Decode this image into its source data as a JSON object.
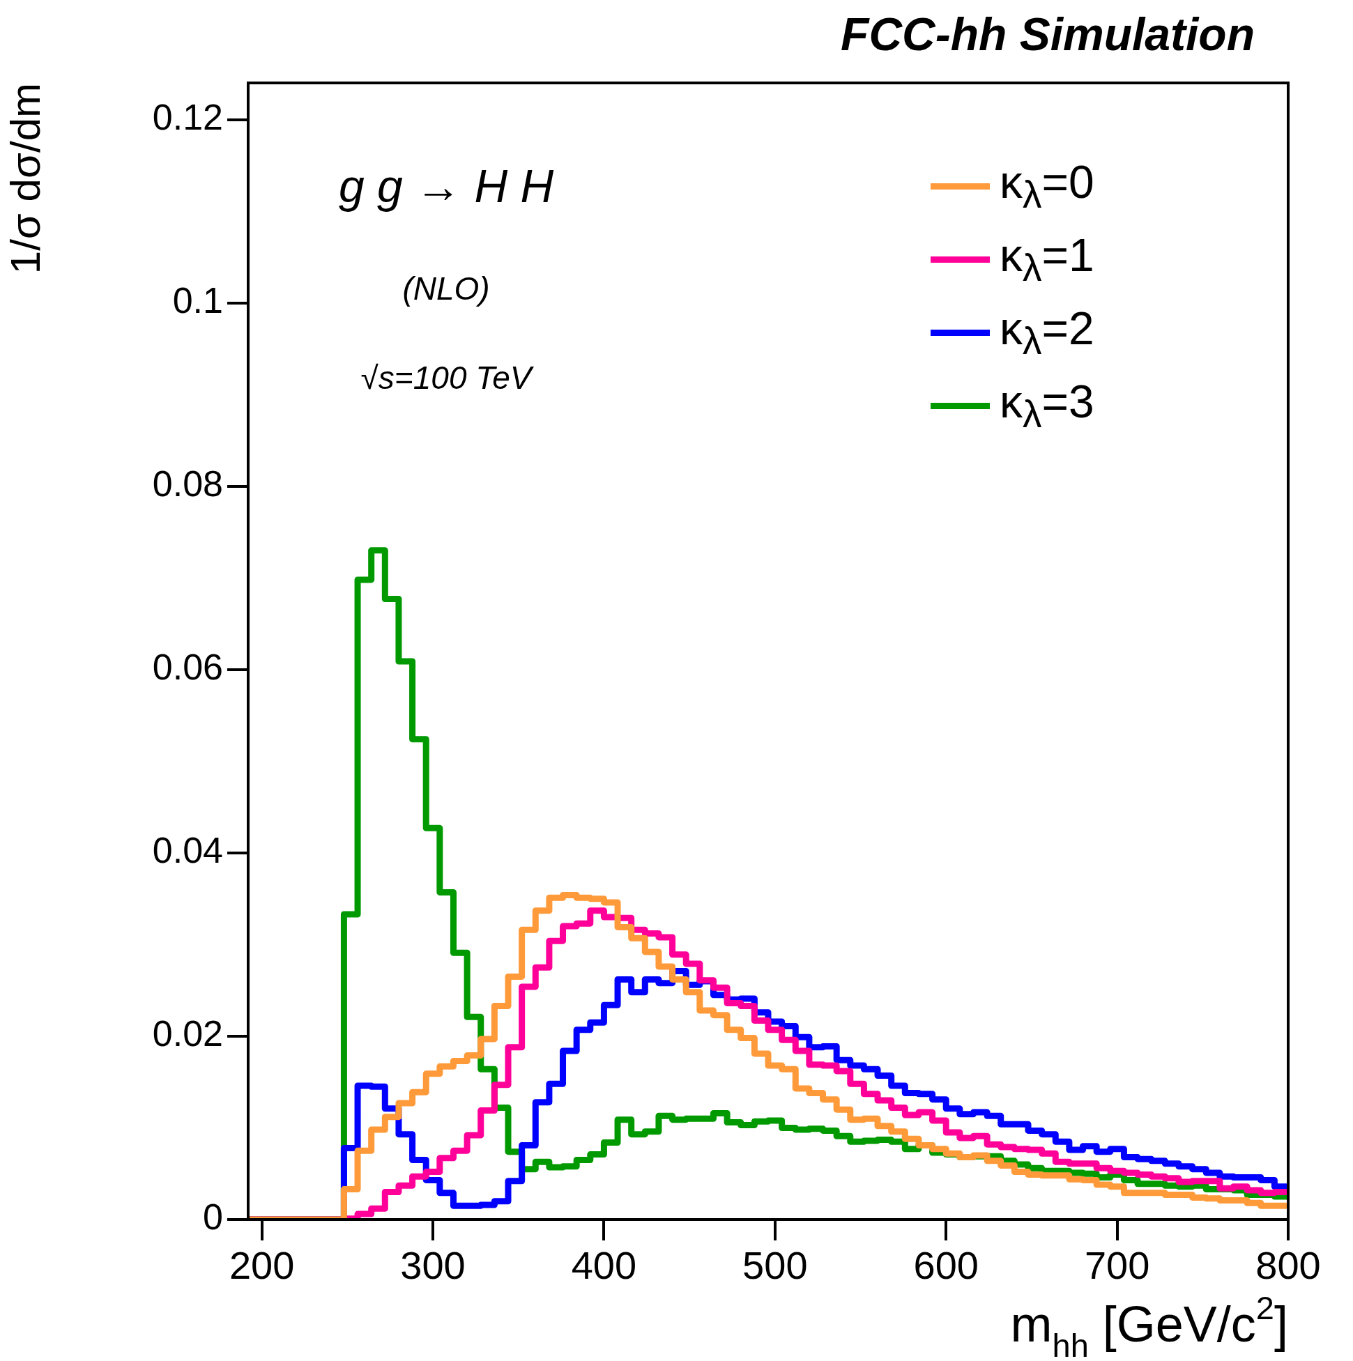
{
  "chart_data": {
    "type": "histogram",
    "title": "FCC-hh Simulation",
    "xlabel": "m$_{hh}$ [GeV/c$^{2}$]",
    "ylabel": "1/σ dσ/dm",
    "annotations": [
      "g g → H H",
      "(NLO)",
      "√s=100 TeV"
    ],
    "bins": [
      192,
      200,
      208,
      216,
      224,
      232,
      240,
      248,
      256,
      264,
      272,
      280,
      288,
      296,
      304,
      312,
      320,
      328,
      336,
      344,
      352,
      360,
      368,
      376,
      384,
      392,
      400,
      408,
      416,
      424,
      432,
      440,
      448,
      456,
      464,
      472,
      480,
      488,
      496,
      504,
      512,
      520,
      528,
      536,
      544,
      552,
      560,
      568,
      576,
      584,
      592,
      600,
      608,
      616,
      624,
      632,
      640,
      648,
      656,
      664,
      672,
      680,
      688,
      696,
      704,
      712,
      720,
      728,
      736,
      744,
      752,
      760,
      768,
      776,
      784,
      792,
      800
    ],
    "series": [
      {
        "name": "κ$_{λ}$=0",
        "color": "#fe9a3a",
        "values": [
          0,
          0,
          0,
          0,
          0,
          0,
          0,
          0.0033,
          0.0075,
          0.0098,
          0.0112,
          0.0127,
          0.0139,
          0.0159,
          0.0167,
          0.0173,
          0.0179,
          0.0197,
          0.0233,
          0.0265,
          0.0316,
          0.0337,
          0.0351,
          0.0354,
          0.0351,
          0.035,
          0.0346,
          0.0319,
          0.0307,
          0.0292,
          0.0276,
          0.0262,
          0.0248,
          0.0228,
          0.0223,
          0.0207,
          0.0198,
          0.0181,
          0.0168,
          0.0164,
          0.0143,
          0.0138,
          0.0131,
          0.012,
          0.0109,
          0.011,
          0.0102,
          0.0096,
          0.0088,
          0.0081,
          0.0077,
          0.0072,
          0.0068,
          0.007,
          0.0064,
          0.0059,
          0.0052,
          0.0049,
          0.0048,
          0.0048,
          0.0044,
          0.0043,
          0.0038,
          0.0036,
          0.0029,
          0.0029,
          0.0029,
          0.0027,
          0.0027,
          0.0024,
          0.0023,
          0.0021,
          0.0021,
          0.0018,
          0.0015,
          0.0015
        ]
      },
      {
        "name": "κ$_{λ}$=1",
        "color": "#ff0099",
        "values": [
          0,
          0,
          0,
          0,
          0,
          0,
          0,
          0.0001,
          0.0006,
          0.0012,
          0.003,
          0.0037,
          0.0047,
          0.0052,
          0.0067,
          0.0075,
          0.0092,
          0.0119,
          0.0147,
          0.0188,
          0.0254,
          0.0275,
          0.0304,
          0.032,
          0.0323,
          0.0337,
          0.033,
          0.0329,
          0.0316,
          0.0312,
          0.0308,
          0.0289,
          0.0279,
          0.0261,
          0.0253,
          0.0236,
          0.0233,
          0.0217,
          0.0207,
          0.0196,
          0.0184,
          0.0169,
          0.0168,
          0.0162,
          0.0148,
          0.0137,
          0.013,
          0.0122,
          0.0114,
          0.0117,
          0.0108,
          0.0095,
          0.0089,
          0.0091,
          0.0082,
          0.0079,
          0.0077,
          0.0076,
          0.0072,
          0.0063,
          0.0061,
          0.0061,
          0.0056,
          0.0053,
          0.0051,
          0.0049,
          0.0047,
          0.0045,
          0.0041,
          0.0042,
          0.0042,
          0.0034,
          0.0036,
          0.0032,
          0.0029,
          0.003
        ]
      },
      {
        "name": "κ$_{λ}$=2",
        "color": "#0000ff",
        "values": [
          0,
          0,
          0,
          0,
          0,
          0,
          0,
          0.0078,
          0.0146,
          0.0145,
          0.0121,
          0.0093,
          0.0065,
          0.0043,
          0.0029,
          0.0015,
          0.0015,
          0.0016,
          0.002,
          0.0042,
          0.0081,
          0.0128,
          0.0148,
          0.0184,
          0.0207,
          0.0215,
          0.0234,
          0.0262,
          0.0248,
          0.0262,
          0.0258,
          0.0271,
          0.0256,
          0.026,
          0.0245,
          0.024,
          0.0241,
          0.0226,
          0.0216,
          0.0211,
          0.0199,
          0.0188,
          0.0189,
          0.0174,
          0.0168,
          0.0164,
          0.0157,
          0.0146,
          0.0138,
          0.0137,
          0.0131,
          0.0121,
          0.0115,
          0.0117,
          0.0113,
          0.0104,
          0.0104,
          0.0097,
          0.0093,
          0.0085,
          0.0076,
          0.008,
          0.0074,
          0.0077,
          0.0068,
          0.0066,
          0.0064,
          0.0061,
          0.0058,
          0.0055,
          0.0051,
          0.0047,
          0.0046,
          0.0046,
          0.0043,
          0.0036
        ]
      },
      {
        "name": "κ$_{λ}$=3",
        "color": "#009900",
        "values": [
          0,
          0,
          0,
          0,
          0,
          0,
          0,
          0.0333,
          0.0698,
          0.073,
          0.0677,
          0.0609,
          0.0524,
          0.0427,
          0.0357,
          0.0291,
          0.0221,
          0.0164,
          0.0122,
          0.0074,
          0.0055,
          0.0063,
          0.0057,
          0.0058,
          0.0065,
          0.0071,
          0.0084,
          0.0109,
          0.0093,
          0.0096,
          0.0113,
          0.0109,
          0.011,
          0.011,
          0.0116,
          0.0106,
          0.0103,
          0.0107,
          0.0108,
          0.01,
          0.0098,
          0.0099,
          0.0097,
          0.0091,
          0.0085,
          0.0086,
          0.0087,
          0.0085,
          0.0077,
          0.0081,
          0.0073,
          0.0071,
          0.0068,
          0.0069,
          0.0069,
          0.0064,
          0.006,
          0.0056,
          0.0053,
          0.0053,
          0.0051,
          0.005,
          0.0046,
          0.0049,
          0.0043,
          0.0039,
          0.0039,
          0.0037,
          0.0036,
          0.0037,
          0.0033,
          0.0033,
          0.0032,
          0.0027,
          0.0027,
          0.0025
        ]
      }
    ],
    "xlim": [
      192,
      800
    ],
    "xticks": [
      200,
      300,
      400,
      500,
      600,
      700,
      800
    ],
    "ylim": [
      0,
      0.124
    ],
    "yticks": [
      0,
      0.02,
      0.04,
      0.06,
      0.08,
      0.1,
      0.12
    ],
    "grid": false,
    "legend": "top right"
  }
}
